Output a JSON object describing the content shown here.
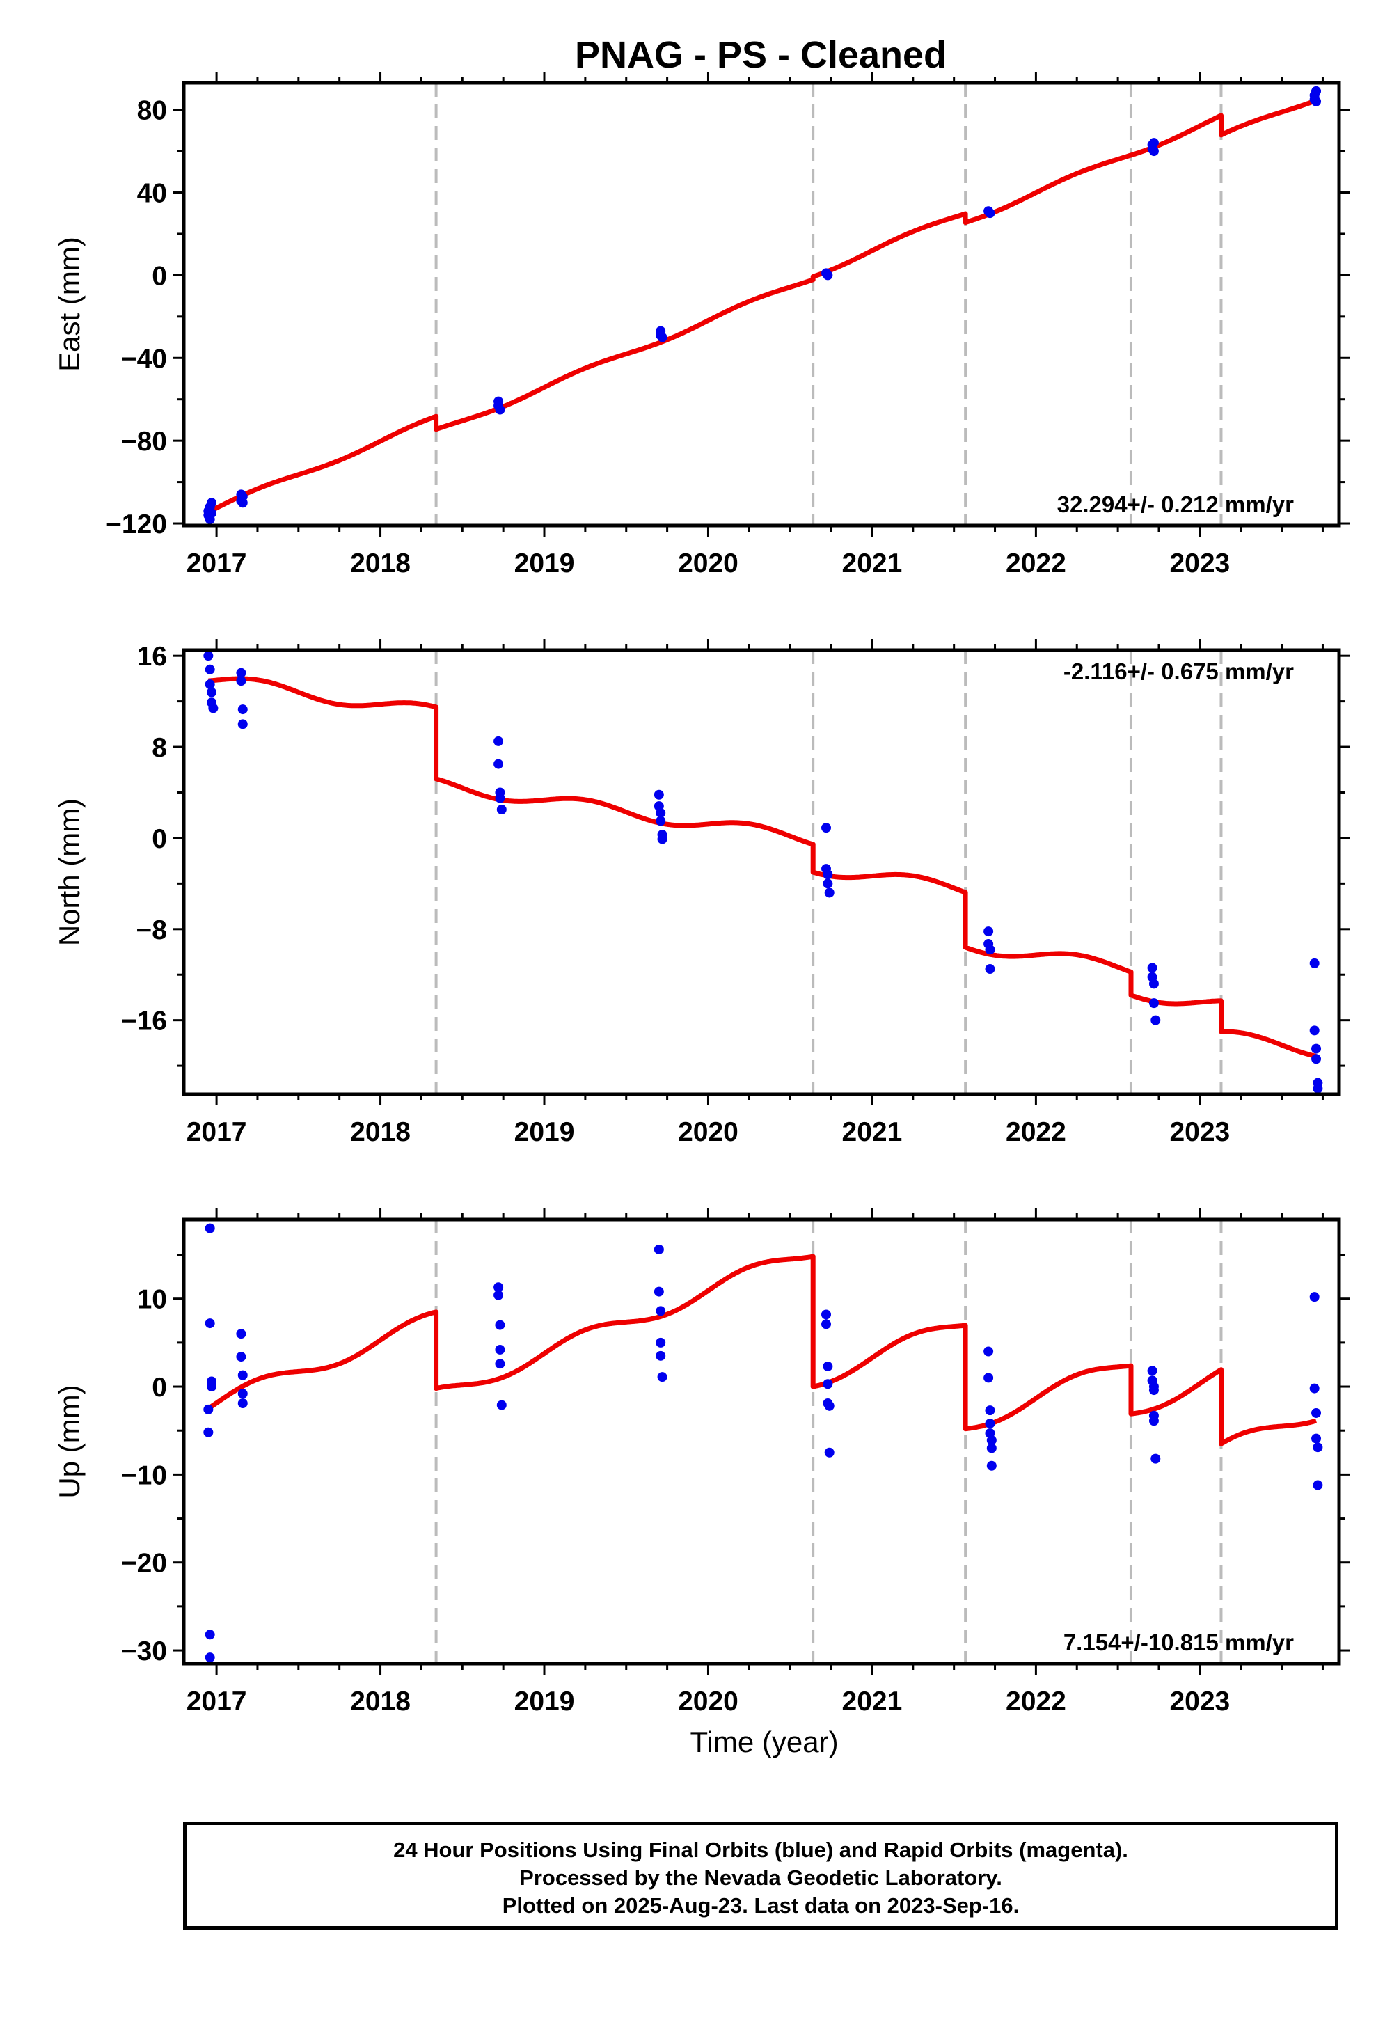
{
  "title": "PNAG  - PS - Cleaned",
  "footer": {
    "line1": "24 Hour Positions Using Final Orbits (blue) and Rapid Orbits (magenta).",
    "line2": "Processed by the Nevada Geodetic Laboratory.",
    "line3": "Plotted on 2025-Aug-23. Last data on 2023-Sep-16."
  },
  "colors": {
    "data_points": "#0000ee",
    "model_line": "#ee0000",
    "event_lines": "#bbbbbb"
  },
  "chart_data": [
    {
      "type": "scatter",
      "panel": "east",
      "ylabel": "East (mm)",
      "xlabel": "",
      "rate_text": "32.294+/- 0.212 mm/yr",
      "xlim": [
        2016.8,
        2023.85
      ],
      "ylim": [
        -121,
        93
      ],
      "xticks": [
        2017,
        2018,
        2019,
        2020,
        2021,
        2022,
        2023
      ],
      "yticks": [
        -120,
        -80,
        -40,
        0,
        40,
        80
      ],
      "ytick_labels": [
        "−120",
        "−80",
        "−40",
        "0",
        "40",
        "80"
      ],
      "event_lines": [
        2018.34,
        2020.64,
        2021.57,
        2022.58,
        2023.13
      ],
      "points": [
        [
          2016.95,
          -114
        ],
        [
          2016.95,
          -116
        ],
        [
          2016.96,
          -112
        ],
        [
          2016.96,
          -118
        ],
        [
          2016.97,
          -110
        ],
        [
          2016.97,
          -115
        ],
        [
          2017.15,
          -106
        ],
        [
          2017.15,
          -109
        ],
        [
          2017.16,
          -107
        ],
        [
          2017.16,
          -110
        ],
        [
          2018.72,
          -61
        ],
        [
          2018.72,
          -63
        ],
        [
          2018.73,
          -65
        ],
        [
          2019.71,
          -27
        ],
        [
          2019.71,
          -29
        ],
        [
          2019.72,
          -30
        ],
        [
          2020.72,
          1
        ],
        [
          2020.73,
          0
        ],
        [
          2021.71,
          31
        ],
        [
          2021.72,
          30
        ],
        [
          2022.71,
          63
        ],
        [
          2022.71,
          61
        ],
        [
          2022.72,
          64
        ],
        [
          2022.72,
          60
        ],
        [
          2023.7,
          85
        ],
        [
          2023.7,
          87
        ],
        [
          2023.71,
          89
        ],
        [
          2023.71,
          84
        ]
      ],
      "model": {
        "rate": 32.294,
        "segments": [
          {
            "x0": 2016.95,
            "x1": 2018.34,
            "y0": -114.5
          },
          {
            "x0": 2018.34,
            "x1": 2020.64,
            "y0": -74.5
          },
          {
            "x0": 2020.64,
            "x1": 2021.57,
            "y0": -0.7
          },
          {
            "x0": 2021.57,
            "x1": 2022.58,
            "y0": 25.5
          },
          {
            "x0": 2022.58,
            "x1": 2023.13,
            "y0": 58.0
          },
          {
            "x0": 2023.13,
            "x1": 2023.71,
            "y0": 67.8
          }
        ],
        "seasonal_amplitude": 1.2
      }
    },
    {
      "type": "scatter",
      "panel": "north",
      "ylabel": "North (mm)",
      "xlabel": "",
      "rate_text": "-2.116+/- 0.675 mm/yr",
      "xlim": [
        2016.8,
        2023.85
      ],
      "ylim": [
        -22.5,
        16.5
      ],
      "xticks": [
        2017,
        2018,
        2019,
        2020,
        2021,
        2022,
        2023
      ],
      "yticks": [
        -16,
        -8,
        0,
        8,
        16
      ],
      "ytick_labels": [
        "−16",
        "−8",
        "0",
        "8",
        "16"
      ],
      "event_lines": [
        2018.34,
        2020.64,
        2021.57,
        2022.58,
        2023.13
      ],
      "points": [
        [
          2016.95,
          16.0
        ],
        [
          2016.96,
          14.8
        ],
        [
          2016.96,
          13.5
        ],
        [
          2016.97,
          12.8
        ],
        [
          2016.97,
          11.9
        ],
        [
          2016.98,
          11.4
        ],
        [
          2017.15,
          14.5
        ],
        [
          2017.15,
          13.8
        ],
        [
          2017.16,
          11.3
        ],
        [
          2017.16,
          10.0
        ],
        [
          2018.72,
          8.5
        ],
        [
          2018.72,
          6.5
        ],
        [
          2018.73,
          4.0
        ],
        [
          2018.73,
          3.5
        ],
        [
          2018.74,
          2.5
        ],
        [
          2019.7,
          3.8
        ],
        [
          2019.7,
          2.8
        ],
        [
          2019.71,
          2.2
        ],
        [
          2019.71,
          1.5
        ],
        [
          2019.72,
          0.3
        ],
        [
          2019.72,
          -0.1
        ],
        [
          2020.72,
          0.9
        ],
        [
          2020.72,
          -2.7
        ],
        [
          2020.73,
          -3.2
        ],
        [
          2020.73,
          -4.0
        ],
        [
          2020.74,
          -4.8
        ],
        [
          2021.71,
          -8.2
        ],
        [
          2021.71,
          -9.3
        ],
        [
          2021.72,
          -9.8
        ],
        [
          2021.72,
          -11.5
        ],
        [
          2022.71,
          -11.4
        ],
        [
          2022.71,
          -12.2
        ],
        [
          2022.72,
          -12.8
        ],
        [
          2022.72,
          -14.5
        ],
        [
          2022.73,
          -16.0
        ],
        [
          2023.7,
          -11.0
        ],
        [
          2023.7,
          -16.9
        ],
        [
          2023.71,
          -18.5
        ],
        [
          2023.71,
          -19.4
        ],
        [
          2023.72,
          -21.5
        ],
        [
          2023.72,
          -22.0
        ]
      ],
      "model": {
        "rate": -2.116,
        "segments": [
          {
            "x0": 2016.95,
            "x1": 2018.34,
            "y0": 13.8
          },
          {
            "x0": 2018.34,
            "x1": 2020.64,
            "y0": 5.2
          },
          {
            "x0": 2020.64,
            "x1": 2021.57,
            "y0": -3.0
          },
          {
            "x0": 2021.57,
            "x1": 2022.58,
            "y0": -9.6
          },
          {
            "x0": 2022.58,
            "x1": 2023.13,
            "y0": -13.8
          },
          {
            "x0": 2023.13,
            "x1": 2023.71,
            "y0": -17.0
          }
        ],
        "seasonal_amplitude": 0.55
      }
    },
    {
      "type": "scatter",
      "panel": "up",
      "ylabel": "Up (mm)",
      "xlabel": "Time (year)",
      "rate_text": "7.154+/-10.815 mm/yr",
      "xlim": [
        2016.8,
        2023.85
      ],
      "ylim": [
        -31.5,
        19
      ],
      "xticks": [
        2017,
        2018,
        2019,
        2020,
        2021,
        2022,
        2023
      ],
      "yticks": [
        -30,
        -20,
        -10,
        0,
        10
      ],
      "ytick_labels": [
        "−30",
        "−20",
        "−10",
        "0",
        "10"
      ],
      "event_lines": [
        2018.34,
        2020.64,
        2021.57,
        2022.58,
        2023.13
      ],
      "points": [
        [
          2016.96,
          18.0
        ],
        [
          2016.96,
          7.2
        ],
        [
          2016.97,
          0.6
        ],
        [
          2016.97,
          0.0
        ],
        [
          2016.95,
          -2.6
        ],
        [
          2016.95,
          -5.2
        ],
        [
          2016.96,
          -28.2
        ],
        [
          2016.96,
          -30.8
        ],
        [
          2017.15,
          6.0
        ],
        [
          2017.15,
          3.4
        ],
        [
          2017.16,
          1.3
        ],
        [
          2017.16,
          -0.8
        ],
        [
          2017.16,
          -1.9
        ],
        [
          2018.72,
          11.3
        ],
        [
          2018.72,
          10.4
        ],
        [
          2018.73,
          7.0
        ],
        [
          2018.73,
          4.2
        ],
        [
          2018.73,
          2.6
        ],
        [
          2018.74,
          -2.1
        ],
        [
          2019.7,
          15.6
        ],
        [
          2019.7,
          10.8
        ],
        [
          2019.71,
          8.6
        ],
        [
          2019.71,
          5.0
        ],
        [
          2019.71,
          3.5
        ],
        [
          2019.72,
          1.1
        ],
        [
          2020.72,
          8.2
        ],
        [
          2020.72,
          7.1
        ],
        [
          2020.73,
          2.3
        ],
        [
          2020.73,
          0.3
        ],
        [
          2020.73,
          -1.9
        ],
        [
          2020.74,
          -2.2
        ],
        [
          2020.74,
          -7.5
        ],
        [
          2021.71,
          4.0
        ],
        [
          2021.71,
          1.0
        ],
        [
          2021.72,
          -2.7
        ],
        [
          2021.72,
          -4.2
        ],
        [
          2021.72,
          -5.3
        ],
        [
          2021.73,
          -6.1
        ],
        [
          2021.73,
          -7.0
        ],
        [
          2021.73,
          -9.0
        ],
        [
          2022.71,
          1.8
        ],
        [
          2022.71,
          0.7
        ],
        [
          2022.72,
          0.0
        ],
        [
          2022.72,
          -0.4
        ],
        [
          2022.72,
          -3.3
        ],
        [
          2022.72,
          -3.9
        ],
        [
          2022.73,
          -8.2
        ],
        [
          2023.7,
          10.2
        ],
        [
          2023.7,
          -0.2
        ],
        [
          2023.71,
          -3.0
        ],
        [
          2023.71,
          -5.9
        ],
        [
          2023.72,
          -6.9
        ],
        [
          2023.72,
          -11.2
        ]
      ],
      "model": {
        "rate": 7.154,
        "segments": [
          {
            "x0": 2016.95,
            "x1": 2018.34,
            "y0": -2.5
          },
          {
            "x0": 2018.34,
            "x1": 2020.64,
            "y0": -0.2
          },
          {
            "x0": 2020.64,
            "x1": 2021.57,
            "y0": 0.0
          },
          {
            "x0": 2021.57,
            "x1": 2022.58,
            "y0": -4.8
          },
          {
            "x0": 2022.58,
            "x1": 2023.13,
            "y0": -3.1
          },
          {
            "x0": 2023.13,
            "x1": 2023.71,
            "y0": -6.5
          }
        ],
        "seasonal_amplitude": 0.9
      }
    }
  ]
}
